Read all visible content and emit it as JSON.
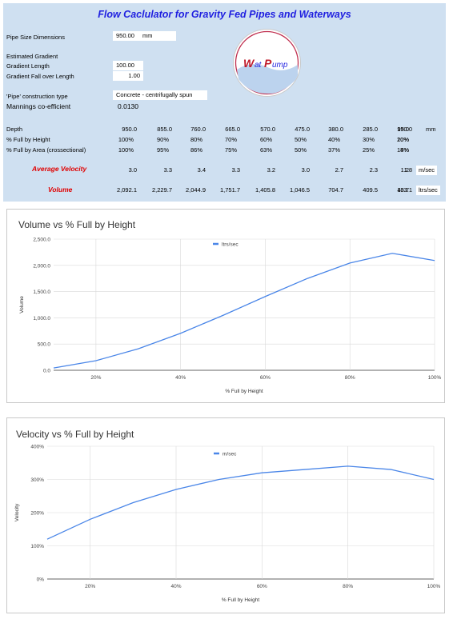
{
  "sheet": {
    "title": "Flow Caclulator for Gravity Fed Pipes and Waterways",
    "pipe_size_label": "Pipe Size Dimensions",
    "pipe_size_value": "950.00",
    "pipe_size_unit": "mm",
    "estimated_gradient_label": "Estimated Gradient",
    "gradient_length_label": "Gradient Length",
    "gradient_length_value": "100.00",
    "gradient_fall_label": "Gradient Fall over Length",
    "gradient_fall_value": "1.00",
    "construction_label": "'Pipe' construction type",
    "construction_value": "Concrete - centrifugally spun",
    "mannings_label": "Mannings co-efficient",
    "mannings_value": "0.0130",
    "logo_text_w": "W",
    "logo_text_at": "at",
    "logo_text_p": "P",
    "logo_text_ump": "ump",
    "depth_label": "Depth",
    "depth_values": [
      "950.0",
      "855.0",
      "760.0",
      "665.0",
      "570.0",
      "475.0",
      "380.0",
      "285.0",
      "190.0",
      "95.0"
    ],
    "depth_unit": "mm",
    "height_label": "% Full by Height",
    "height_values": [
      "100%",
      "90%",
      "80%",
      "70%",
      "60%",
      "50%",
      "40%",
      "30%",
      "20%",
      "10%"
    ],
    "area_label": "% Full by Area (crossectional)",
    "area_values": [
      "100%",
      "95%",
      "86%",
      "75%",
      "63%",
      "50%",
      "37%",
      "25%",
      "14%",
      "5%"
    ],
    "velocity_label": "Average Velocity",
    "velocity_values": [
      "3.0",
      "3.3",
      "3.4",
      "3.3",
      "3.2",
      "3.0",
      "2.7",
      "2.3",
      "1.8",
      "1.2"
    ],
    "velocity_unit": "m/sec",
    "volume_label": "Volume",
    "volume_values": [
      "2,092.1",
      "2,229.7",
      "2,044.9",
      "1,751.7",
      "1,405.8",
      "1,046.5",
      "704.7",
      "409.5",
      "183.1",
      "43.7"
    ],
    "volume_unit": "ltrs/sec"
  },
  "chart_data": [
    {
      "type": "line",
      "title": "Volume vs % Full by Height",
      "xlabel": "% Full by Height",
      "ylabel": "Volume",
      "x": [
        10,
        20,
        30,
        40,
        50,
        60,
        70,
        80,
        90,
        100
      ],
      "x_ticks": [
        "20%",
        "40%",
        "60%",
        "80%",
        "100%"
      ],
      "x_tick_values": [
        20,
        40,
        60,
        80,
        100
      ],
      "xlim": [
        10,
        100
      ],
      "ylim": [
        0,
        2500
      ],
      "y_ticks": [
        "0.0",
        "500.0",
        "1,000.0",
        "1,500.0",
        "2,000.0",
        "2,500.0"
      ],
      "y_tick_values": [
        0,
        500,
        1000,
        1500,
        2000,
        2500
      ],
      "grid": true,
      "legend": "top-center",
      "series": [
        {
          "name": "ltrs/sec",
          "color": "#4a86e8",
          "values": [
            43.7,
            183.1,
            409.5,
            704.7,
            1046.5,
            1405.8,
            1751.7,
            2044.9,
            2229.7,
            2092.1
          ]
        }
      ]
    },
    {
      "type": "line",
      "title": "Velocity vs % Full by Height",
      "xlabel": "% Full by Height",
      "ylabel": "Velocity",
      "x": [
        10,
        20,
        30,
        40,
        50,
        60,
        70,
        80,
        90,
        100
      ],
      "x_ticks": [
        "20%",
        "40%",
        "60%",
        "80%",
        "100%"
      ],
      "x_tick_values": [
        20,
        40,
        60,
        80,
        100
      ],
      "xlim": [
        10,
        100
      ],
      "ylim": [
        0,
        4
      ],
      "y_ticks": [
        "0%",
        "100%",
        "200%",
        "300%",
        "400%"
      ],
      "y_tick_values": [
        0,
        1,
        2,
        3,
        4
      ],
      "grid": true,
      "legend": "top-center",
      "series": [
        {
          "name": "m/sec",
          "color": "#4a86e8",
          "values": [
            1.2,
            1.8,
            2.3,
            2.7,
            3.0,
            3.2,
            3.3,
            3.4,
            3.3,
            3.0
          ]
        }
      ]
    }
  ]
}
